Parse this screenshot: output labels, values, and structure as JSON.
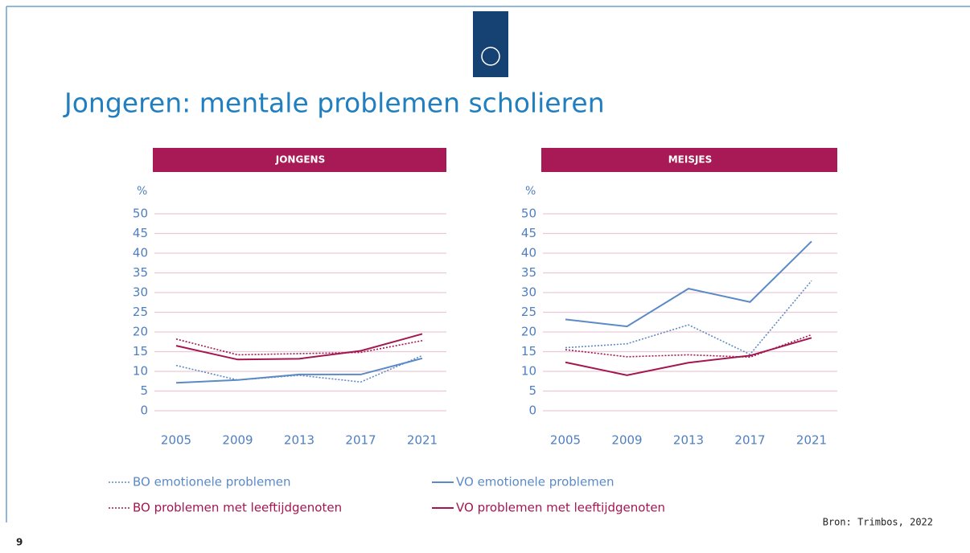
{
  "title": "Jongeren: mentale problemen scholieren",
  "source": "Bron: Trimbos, 2022",
  "page": "9",
  "chart_data": [
    {
      "type": "line",
      "title": "JONGENS",
      "y_label": "%",
      "categories": [
        "2005",
        "2009",
        "2013",
        "2017",
        "2021"
      ],
      "ylim": [
        0,
        50
      ],
      "yticks": [
        0,
        5,
        10,
        15,
        20,
        25,
        30,
        35,
        40,
        45,
        50
      ],
      "grid": true,
      "series": [
        {
          "name": "BO emotionele problemen",
          "color": "#5b8ac6",
          "style": "dotted",
          "values": [
            11.5,
            7.8,
            9,
            7.3,
            14
          ]
        },
        {
          "name": "VO emotionele problemen",
          "color": "#5b8ac6",
          "style": "solid",
          "values": [
            7.1,
            7.8,
            9.2,
            9.2,
            13.3
          ]
        },
        {
          "name": "BO problemen met leeftijdgenoten",
          "color": "#a3164f",
          "style": "dotted",
          "values": [
            18.2,
            14.2,
            14.5,
            14.8,
            17.8
          ]
        },
        {
          "name": "VO problemen met leeftijdgenoten",
          "color": "#a3164f",
          "style": "solid",
          "values": [
            16.5,
            13,
            13.2,
            15.2,
            19.5
          ]
        }
      ]
    },
    {
      "type": "line",
      "title": "MEISJES",
      "y_label": "%",
      "categories": [
        "2005",
        "2009",
        "2013",
        "2017",
        "2021"
      ],
      "ylim": [
        0,
        50
      ],
      "yticks": [
        0,
        5,
        10,
        15,
        20,
        25,
        30,
        35,
        40,
        45,
        50
      ],
      "grid": true,
      "series": [
        {
          "color": "#5b8ac6",
          "style": "dotted",
          "values": [
            16,
            17,
            21.8,
            14.3,
            33
          ]
        },
        {
          "color": "#5b8ac6",
          "style": "solid",
          "values": [
            23.2,
            21.4,
            31,
            27.6,
            43
          ]
        },
        {
          "color": "#a3164f",
          "style": "dotted",
          "values": [
            15.5,
            13.7,
            14.2,
            13.6,
            19.3
          ]
        },
        {
          "color": "#a3164f",
          "style": "solid",
          "values": [
            12.3,
            9,
            12.2,
            14,
            18.5
          ]
        }
      ]
    }
  ]
}
